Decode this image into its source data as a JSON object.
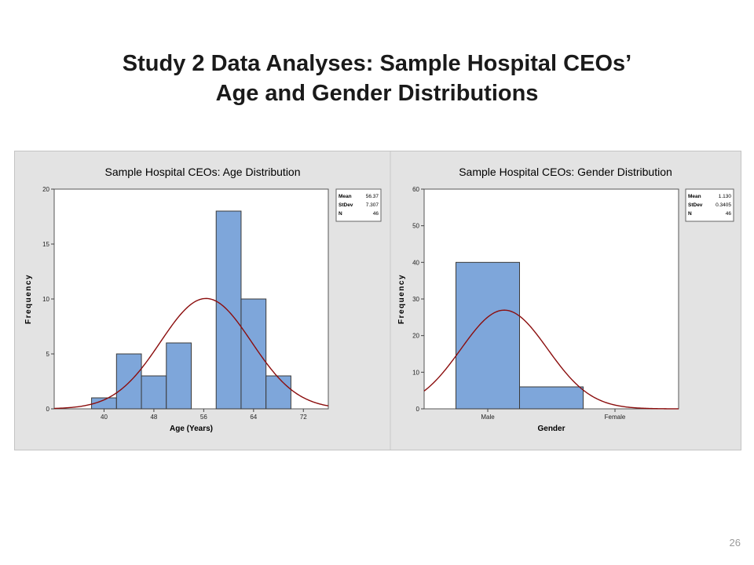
{
  "slide": {
    "title_line1": "Study 2 Data Analyses: Sample Hospital CEOs’",
    "title_line2": "Age and Gender Distributions",
    "page_number": "26"
  },
  "colors": {
    "bar_fill": "#7ea6da",
    "bar_stroke": "#3a3a3a",
    "curve": "#8b0d0d",
    "panel_bg": "#e3e3e3",
    "plot_bg": "#ffffff"
  },
  "chart_data": [
    {
      "type": "bar",
      "subtype": "histogram",
      "title": "Sample Hospital CEOs: Age Distribution",
      "xlabel": "Age (Years)",
      "ylabel": "Frequency",
      "xlim": [
        32,
        76
      ],
      "ylim": [
        0,
        20
      ],
      "xticks": [
        40,
        48,
        56,
        64,
        72
      ],
      "yticks": [
        0,
        5,
        10,
        15,
        20
      ],
      "bins": [
        {
          "from": 38,
          "to": 42,
          "count": 1
        },
        {
          "from": 42,
          "to": 46,
          "count": 5
        },
        {
          "from": 46,
          "to": 50,
          "count": 3
        },
        {
          "from": 50,
          "to": 54,
          "count": 6
        },
        {
          "from": 54,
          "to": 58,
          "count": 0
        },
        {
          "from": 58,
          "to": 62,
          "count": 18
        },
        {
          "from": 62,
          "to": 66,
          "count": 10
        },
        {
          "from": 66,
          "to": 70,
          "count": 3
        }
      ],
      "stats": [
        {
          "label": "Mean",
          "value": "56.37"
        },
        {
          "label": "StDev",
          "value": "7.307"
        },
        {
          "label": "N",
          "value": "46"
        }
      ],
      "normal_fit": {
        "mean": 56.37,
        "sd": 7.307,
        "n": 46,
        "bin_width": 4
      },
      "grid": false,
      "legend": "top-right"
    },
    {
      "type": "bar",
      "subtype": "histogram",
      "title": "Sample Hospital CEOs: Gender Distribution",
      "xlabel": "Gender",
      "ylabel": "Frequency",
      "xlim": [
        0.5,
        2.5
      ],
      "ylim": [
        0,
        60
      ],
      "xticks": [
        1,
        2
      ],
      "categories": [
        "Male",
        "Female"
      ],
      "yticks": [
        0,
        10,
        20,
        30,
        40,
        50,
        60
      ],
      "bins": [
        {
          "from": 0.75,
          "to": 1.25,
          "count": 40
        },
        {
          "from": 1.25,
          "to": 1.75,
          "count": 6
        }
      ],
      "stats": [
        {
          "label": "Mean",
          "value": "1.130"
        },
        {
          "label": "StDev",
          "value": "0.3405"
        },
        {
          "label": "N",
          "value": "46"
        }
      ],
      "normal_fit": {
        "mean": 1.13,
        "sd": 0.3405,
        "n": 46,
        "bin_width": 0.5
      },
      "grid": false,
      "legend": "top-right"
    }
  ]
}
